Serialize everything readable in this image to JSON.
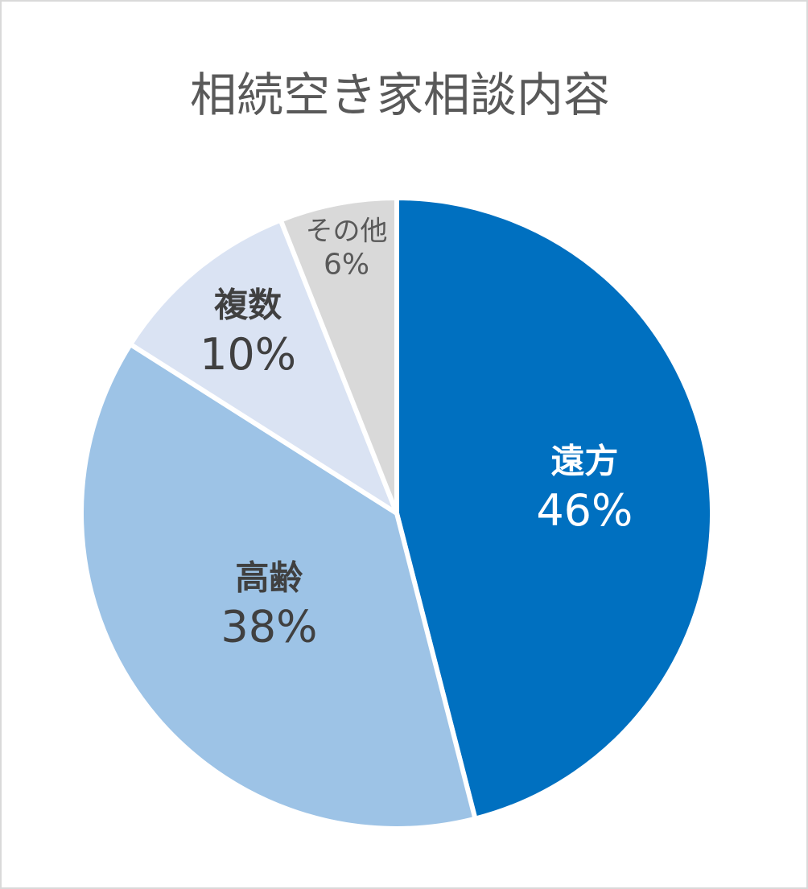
{
  "chart_data": {
    "type": "pie",
    "title": "相続空き家相談内容",
    "categories": [
      "遠方",
      "高齢",
      "複数",
      "その他"
    ],
    "values": [
      46,
      38,
      10,
      6
    ],
    "value_labels": [
      "46%",
      "38%",
      "10%",
      "6%"
    ],
    "colors": [
      "#0070c0",
      "#9dc3e6",
      "#dae3f3",
      "#d9d9d9"
    ]
  }
}
